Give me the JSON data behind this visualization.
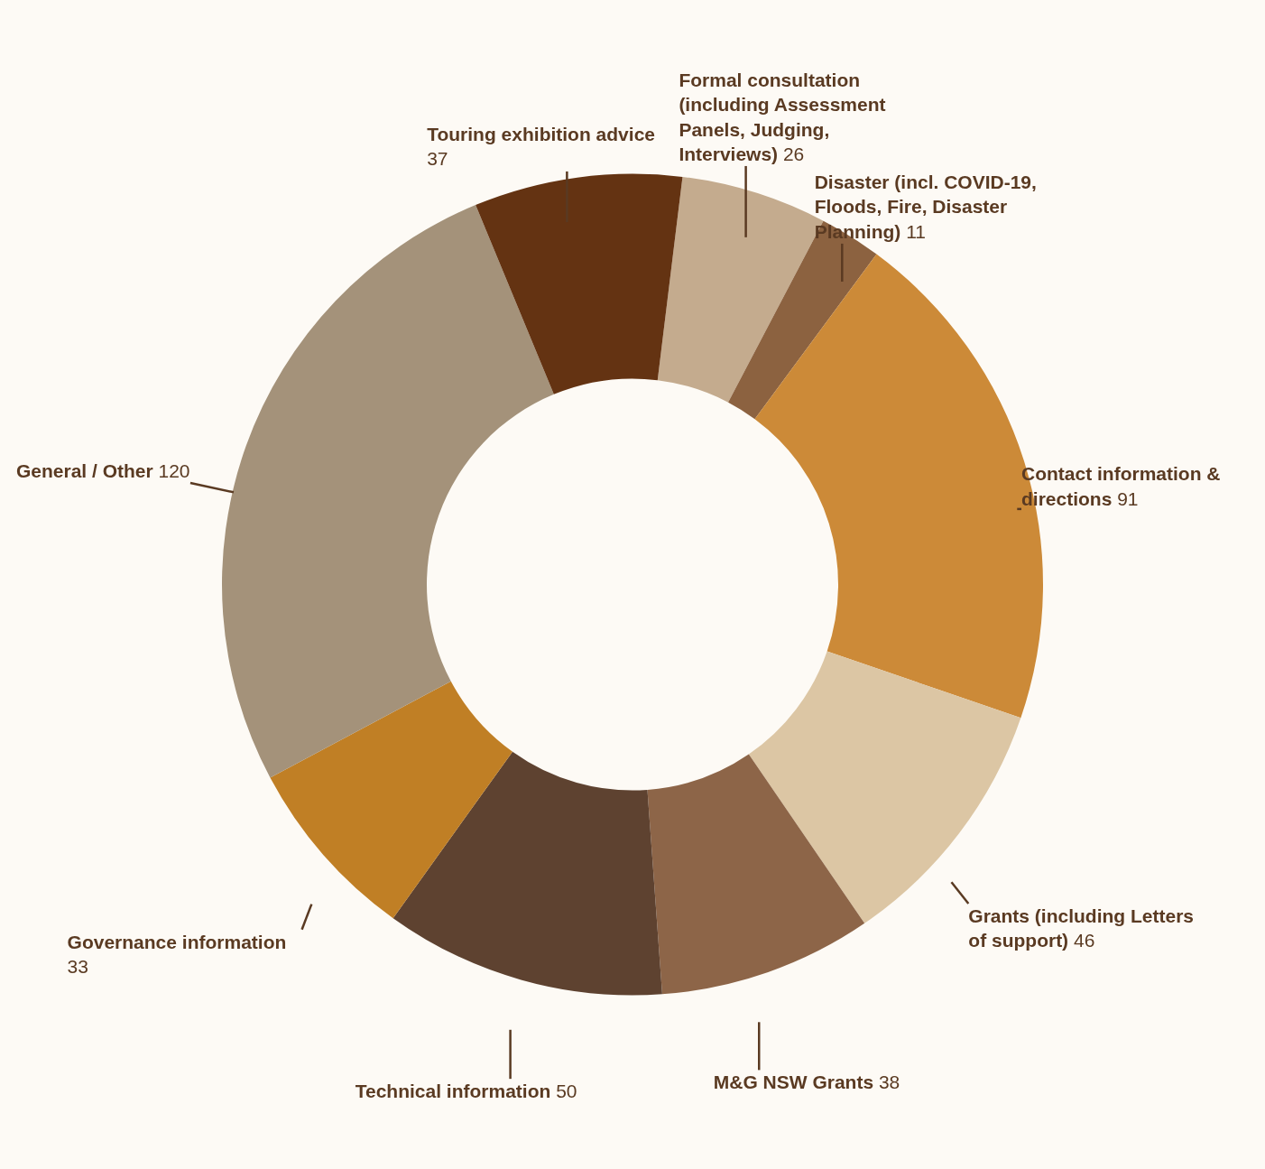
{
  "chart_data": {
    "type": "donut",
    "categories": [
      "Formal consultation (including Assessment Panels, Judging, Interviews)",
      "Disaster (incl. COVID-19, Floods, Fire, Disaster Planning)",
      "Contact information & directions",
      "Grants (including Letters of support)",
      "M&G NSW Grants",
      "Technical information",
      "Governance information",
      "General / Other",
      "Touring exhibition advice"
    ],
    "values": [
      26,
      11,
      91,
      46,
      38,
      50,
      33,
      120,
      37
    ],
    "colors": [
      "#c4ab8e",
      "#8c6240",
      "#cc8a38",
      "#dcc6a4",
      "#8d6548",
      "#5e4230",
      "#c07f25",
      "#a4927a",
      "#643312"
    ],
    "data_labels": true
  }
}
